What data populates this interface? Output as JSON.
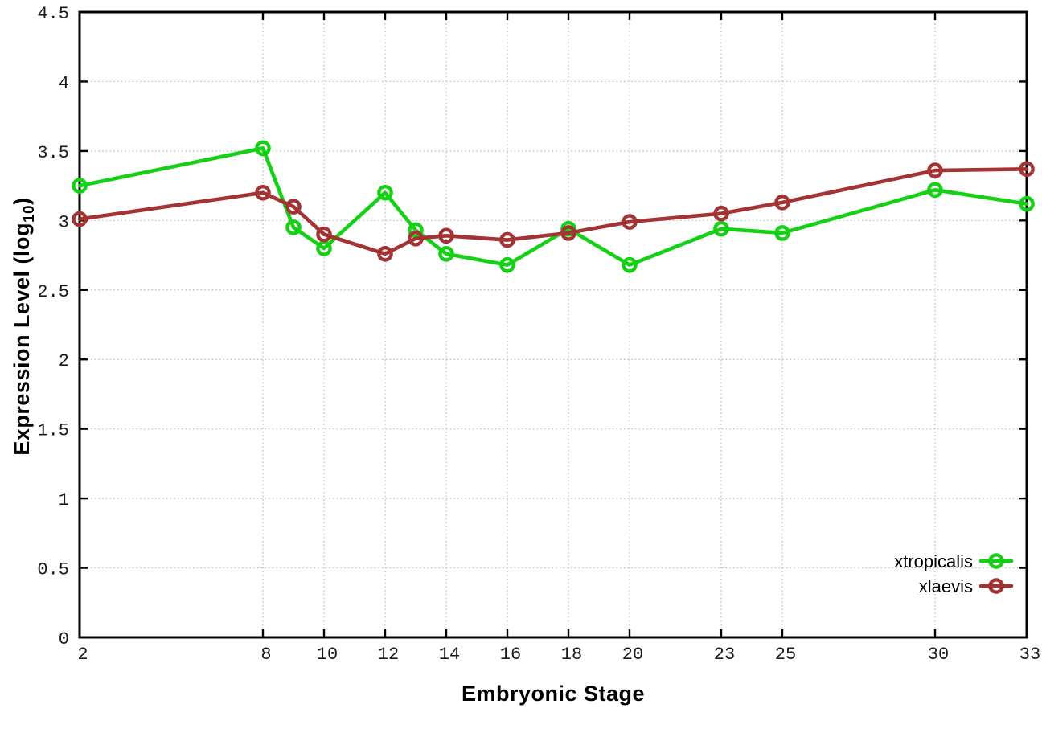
{
  "figure": {
    "background": "#ffffff",
    "plot_border_color": "#000000",
    "grid_color": "#b8b8b8",
    "tick_label_color": "#1a1a1a",
    "axis_title_color": "#000000"
  },
  "chart_data": {
    "type": "line",
    "title": "",
    "xlabel": "Embryonic Stage",
    "ylabel": "Expression Level (log10)",
    "ylabel_parts": {
      "prefix": "Expression Level (log",
      "subscript": "10",
      "suffix": ")"
    },
    "x": [
      2,
      8,
      9,
      10,
      12,
      13,
      14,
      16,
      18,
      20,
      23,
      25,
      30,
      33
    ],
    "xticks": [
      2,
      8,
      10,
      12,
      14,
      16,
      18,
      20,
      23,
      25,
      30,
      33
    ],
    "yticks": [
      0,
      0.5,
      1,
      1.5,
      2,
      2.5,
      3,
      3.5,
      4,
      4.5
    ],
    "xlim": [
      2,
      33
    ],
    "ylim": [
      0,
      4.5
    ],
    "grid": true,
    "legend_position": "inside-bottom-right",
    "marker": "open-circle",
    "series": [
      {
        "name": "xtropicalis",
        "color": "#15d115",
        "values": [
          3.25,
          3.52,
          2.95,
          2.8,
          3.2,
          2.93,
          2.76,
          2.68,
          2.94,
          2.68,
          2.94,
          2.91,
          3.22,
          3.12
        ]
      },
      {
        "name": "xlaevis",
        "color": "#a43333",
        "values": [
          3.01,
          3.2,
          3.1,
          2.9,
          2.76,
          2.87,
          2.89,
          2.86,
          2.91,
          2.99,
          3.05,
          3.13,
          3.36,
          3.37
        ]
      }
    ]
  }
}
